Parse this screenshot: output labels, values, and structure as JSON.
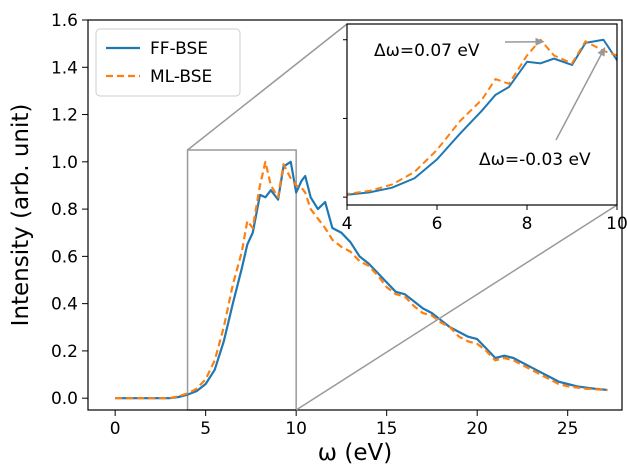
{
  "chart_data": {
    "type": "line",
    "xlabel": "ω (eV)",
    "ylabel": "Intensity (arb. unit)",
    "xlim": [
      -1.5,
      28
    ],
    "ylim": [
      -0.05,
      1.6
    ],
    "xticks": [
      0,
      5,
      10,
      15,
      20,
      25
    ],
    "yticks": [
      0.0,
      0.2,
      0.4,
      0.6,
      0.8,
      1.0,
      1.2,
      1.4,
      1.6
    ],
    "legend_placement": "top-left",
    "series": [
      {
        "name": "FF-BSE",
        "color": "#1f77b4",
        "style": "solid",
        "x": [
          0,
          1,
          2,
          3,
          3.5,
          4,
          4.5,
          5,
          5.5,
          6,
          6.5,
          7,
          7.3,
          7.6,
          8,
          8.3,
          8.6,
          9,
          9.3,
          9.7,
          10,
          10.3,
          10.5,
          10.8,
          11.2,
          11.6,
          12,
          12.5,
          13,
          13.5,
          14,
          14.5,
          15,
          15.5,
          16,
          16.5,
          17,
          17.5,
          18,
          18.5,
          19,
          19.5,
          20,
          20.5,
          21,
          21.5,
          22,
          22.5,
          23,
          23.5,
          24,
          24.5,
          25,
          25.5,
          26,
          26.5,
          27.2
        ],
        "y": [
          0.0,
          0.0,
          0.0,
          0.0,
          0.005,
          0.015,
          0.03,
          0.06,
          0.12,
          0.24,
          0.4,
          0.55,
          0.65,
          0.7,
          0.86,
          0.85,
          0.88,
          0.84,
          0.98,
          1.0,
          0.87,
          0.92,
          0.94,
          0.85,
          0.8,
          0.83,
          0.72,
          0.7,
          0.66,
          0.6,
          0.57,
          0.53,
          0.49,
          0.45,
          0.44,
          0.41,
          0.38,
          0.36,
          0.33,
          0.3,
          0.28,
          0.26,
          0.25,
          0.21,
          0.17,
          0.18,
          0.17,
          0.15,
          0.13,
          0.11,
          0.09,
          0.07,
          0.06,
          0.05,
          0.045,
          0.04,
          0.035
        ]
      },
      {
        "name": "ML-BSE",
        "color": "#ff7f0e",
        "style": "dashed",
        "x": [
          0,
          1,
          2,
          3,
          3.5,
          4,
          4.5,
          5,
          5.5,
          6,
          6.5,
          7,
          7.3,
          7.6,
          8,
          8.3,
          8.6,
          9,
          9.3,
          9.7,
          10,
          10.3,
          10.5,
          10.8,
          11.2,
          11.6,
          12,
          12.5,
          13,
          13.5,
          14,
          14.5,
          15,
          15.5,
          16,
          16.5,
          17,
          17.5,
          18,
          18.5,
          19,
          19.5,
          20,
          20.5,
          21,
          21.5,
          22,
          22.5,
          23,
          23.5,
          24,
          24.5,
          25,
          25.5,
          26,
          26.5,
          27.2
        ],
        "y": [
          0.0,
          0.0,
          0.0,
          0.0,
          0.008,
          0.02,
          0.04,
          0.08,
          0.16,
          0.3,
          0.48,
          0.62,
          0.75,
          0.72,
          0.9,
          1.0,
          0.9,
          0.85,
          0.99,
          0.93,
          0.9,
          0.89,
          0.87,
          0.8,
          0.76,
          0.72,
          0.67,
          0.64,
          0.62,
          0.58,
          0.56,
          0.52,
          0.47,
          0.44,
          0.43,
          0.39,
          0.36,
          0.35,
          0.32,
          0.3,
          0.26,
          0.24,
          0.23,
          0.2,
          0.16,
          0.17,
          0.16,
          0.14,
          0.12,
          0.1,
          0.08,
          0.06,
          0.05,
          0.045,
          0.04,
          0.038,
          0.034
        ]
      }
    ],
    "inset": {
      "xlim": [
        4,
        10
      ],
      "ylim": [
        -0.05,
        1.1
      ],
      "xticks": [
        4,
        6,
        8,
        10
      ],
      "annotations": [
        {
          "text": "Δω=0.07 eV",
          "point_x": 8.5,
          "point_y": 1.0,
          "placement": "left-upper"
        },
        {
          "text": "Δω=-0.03 eV",
          "point_x": 9.75,
          "point_y": 1.0,
          "placement": "below"
        }
      ]
    }
  }
}
